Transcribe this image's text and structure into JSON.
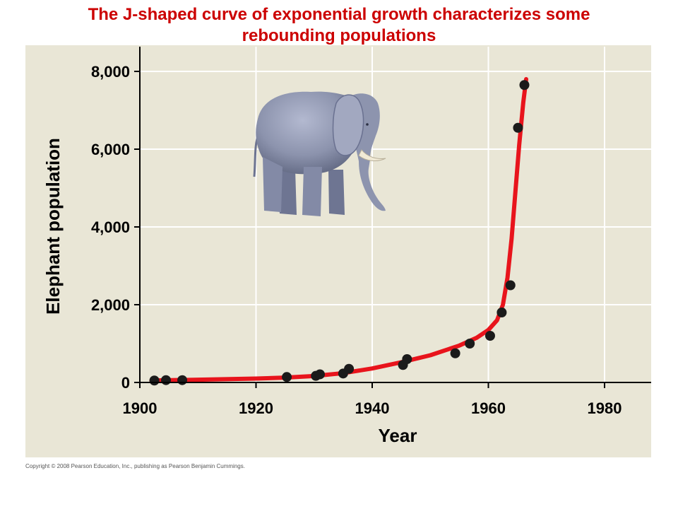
{
  "title": {
    "line1": "The J-shaped curve of exponential growth characterizes some",
    "line2": "rebounding populations"
  },
  "copyright": "Copyright © 2008 Pearson Education, Inc., publishing as Pearson Benjamin Cummings.",
  "colors": {
    "title": "#cc0000",
    "panel_background": "#e9e6d6",
    "curve": "#e8141c",
    "points": "#1b1b1b",
    "gridlines": "#ffffff"
  },
  "illustration": "elephant",
  "chart_data": {
    "type": "scatter",
    "title": "",
    "xlabel": "Year",
    "ylabel": "Elephant population",
    "xlim": [
      1900,
      1988
    ],
    "ylim": [
      0,
      8000
    ],
    "x_ticks": [
      1900,
      1920,
      1940,
      1960,
      1980
    ],
    "x_tick_labels": [
      "1900",
      "1920",
      "1940",
      "1960",
      "1980"
    ],
    "y_ticks": [
      0,
      2000,
      4000,
      6000,
      8000
    ],
    "y_tick_labels": [
      "0",
      "2,000",
      "4,000",
      "6,000",
      "8,000"
    ],
    "grid": true,
    "points": [
      {
        "x": 1902.5,
        "y": 50
      },
      {
        "x": 1904.5,
        "y": 60
      },
      {
        "x": 1907.3,
        "y": 60
      },
      {
        "x": 1925.3,
        "y": 140
      },
      {
        "x": 1930.3,
        "y": 170
      },
      {
        "x": 1931,
        "y": 210
      },
      {
        "x": 1935,
        "y": 230
      },
      {
        "x": 1936,
        "y": 350
      },
      {
        "x": 1945.3,
        "y": 450
      },
      {
        "x": 1946,
        "y": 600
      },
      {
        "x": 1954.3,
        "y": 750
      },
      {
        "x": 1956.8,
        "y": 1000
      },
      {
        "x": 1960.3,
        "y": 1200
      },
      {
        "x": 1962.3,
        "y": 1800
      },
      {
        "x": 1963.8,
        "y": 2500
      },
      {
        "x": 1965.1,
        "y": 6550
      },
      {
        "x": 1966.2,
        "y": 7650
      }
    ],
    "curve": {
      "name": "",
      "x": [
        1902,
        1910,
        1920,
        1925,
        1930,
        1935,
        1940,
        1945,
        1950,
        1955,
        1958,
        1960,
        1961.5,
        1962.5,
        1963.3,
        1964,
        1964.7,
        1965.3,
        1966,
        1966.5
      ],
      "y": [
        50,
        70,
        100,
        125,
        165,
        240,
        360,
        520,
        700,
        950,
        1150,
        1350,
        1600,
        2000,
        2700,
        3700,
        5000,
        6100,
        7200,
        7800
      ]
    }
  }
}
